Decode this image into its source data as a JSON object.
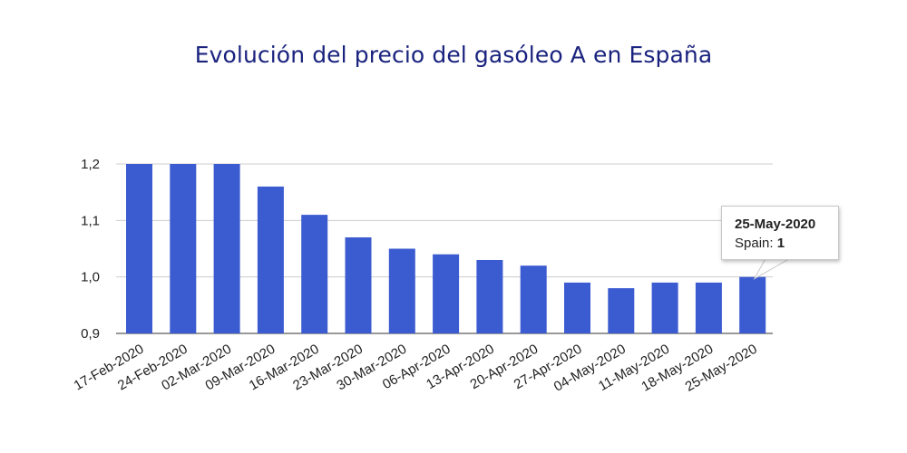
{
  "chart_data": {
    "type": "bar",
    "title": "Evolución del precio del gasóleo A en España",
    "xlabel": "",
    "ylabel": "",
    "categories": [
      "17-Feb-2020",
      "24-Feb-2020",
      "02-Mar-2020",
      "09-Mar-2020",
      "16-Mar-2020",
      "23-Mar-2020",
      "30-Mar-2020",
      "06-Apr-2020",
      "13-Apr-2020",
      "20-Apr-2020",
      "27-Apr-2020",
      "04-May-2020",
      "11-May-2020",
      "18-May-2020",
      "25-May-2020"
    ],
    "series": [
      {
        "name": "Spain",
        "values": [
          1.2,
          1.2,
          1.2,
          1.16,
          1.11,
          1.07,
          1.05,
          1.04,
          1.03,
          1.02,
          0.99,
          0.98,
          0.99,
          0.99,
          1.0
        ]
      }
    ],
    "ylim": [
      0.9,
      1.2
    ],
    "y_ticks": [
      "0,9",
      "1,0",
      "1,1",
      "1,2"
    ],
    "grid": true,
    "bar_color": "#3b5bd1",
    "grid_color": "#cccccc",
    "title_color": "#1a237e",
    "tooltip": {
      "title": "25-May-2020",
      "label": "Spain: ",
      "value": "1"
    }
  }
}
